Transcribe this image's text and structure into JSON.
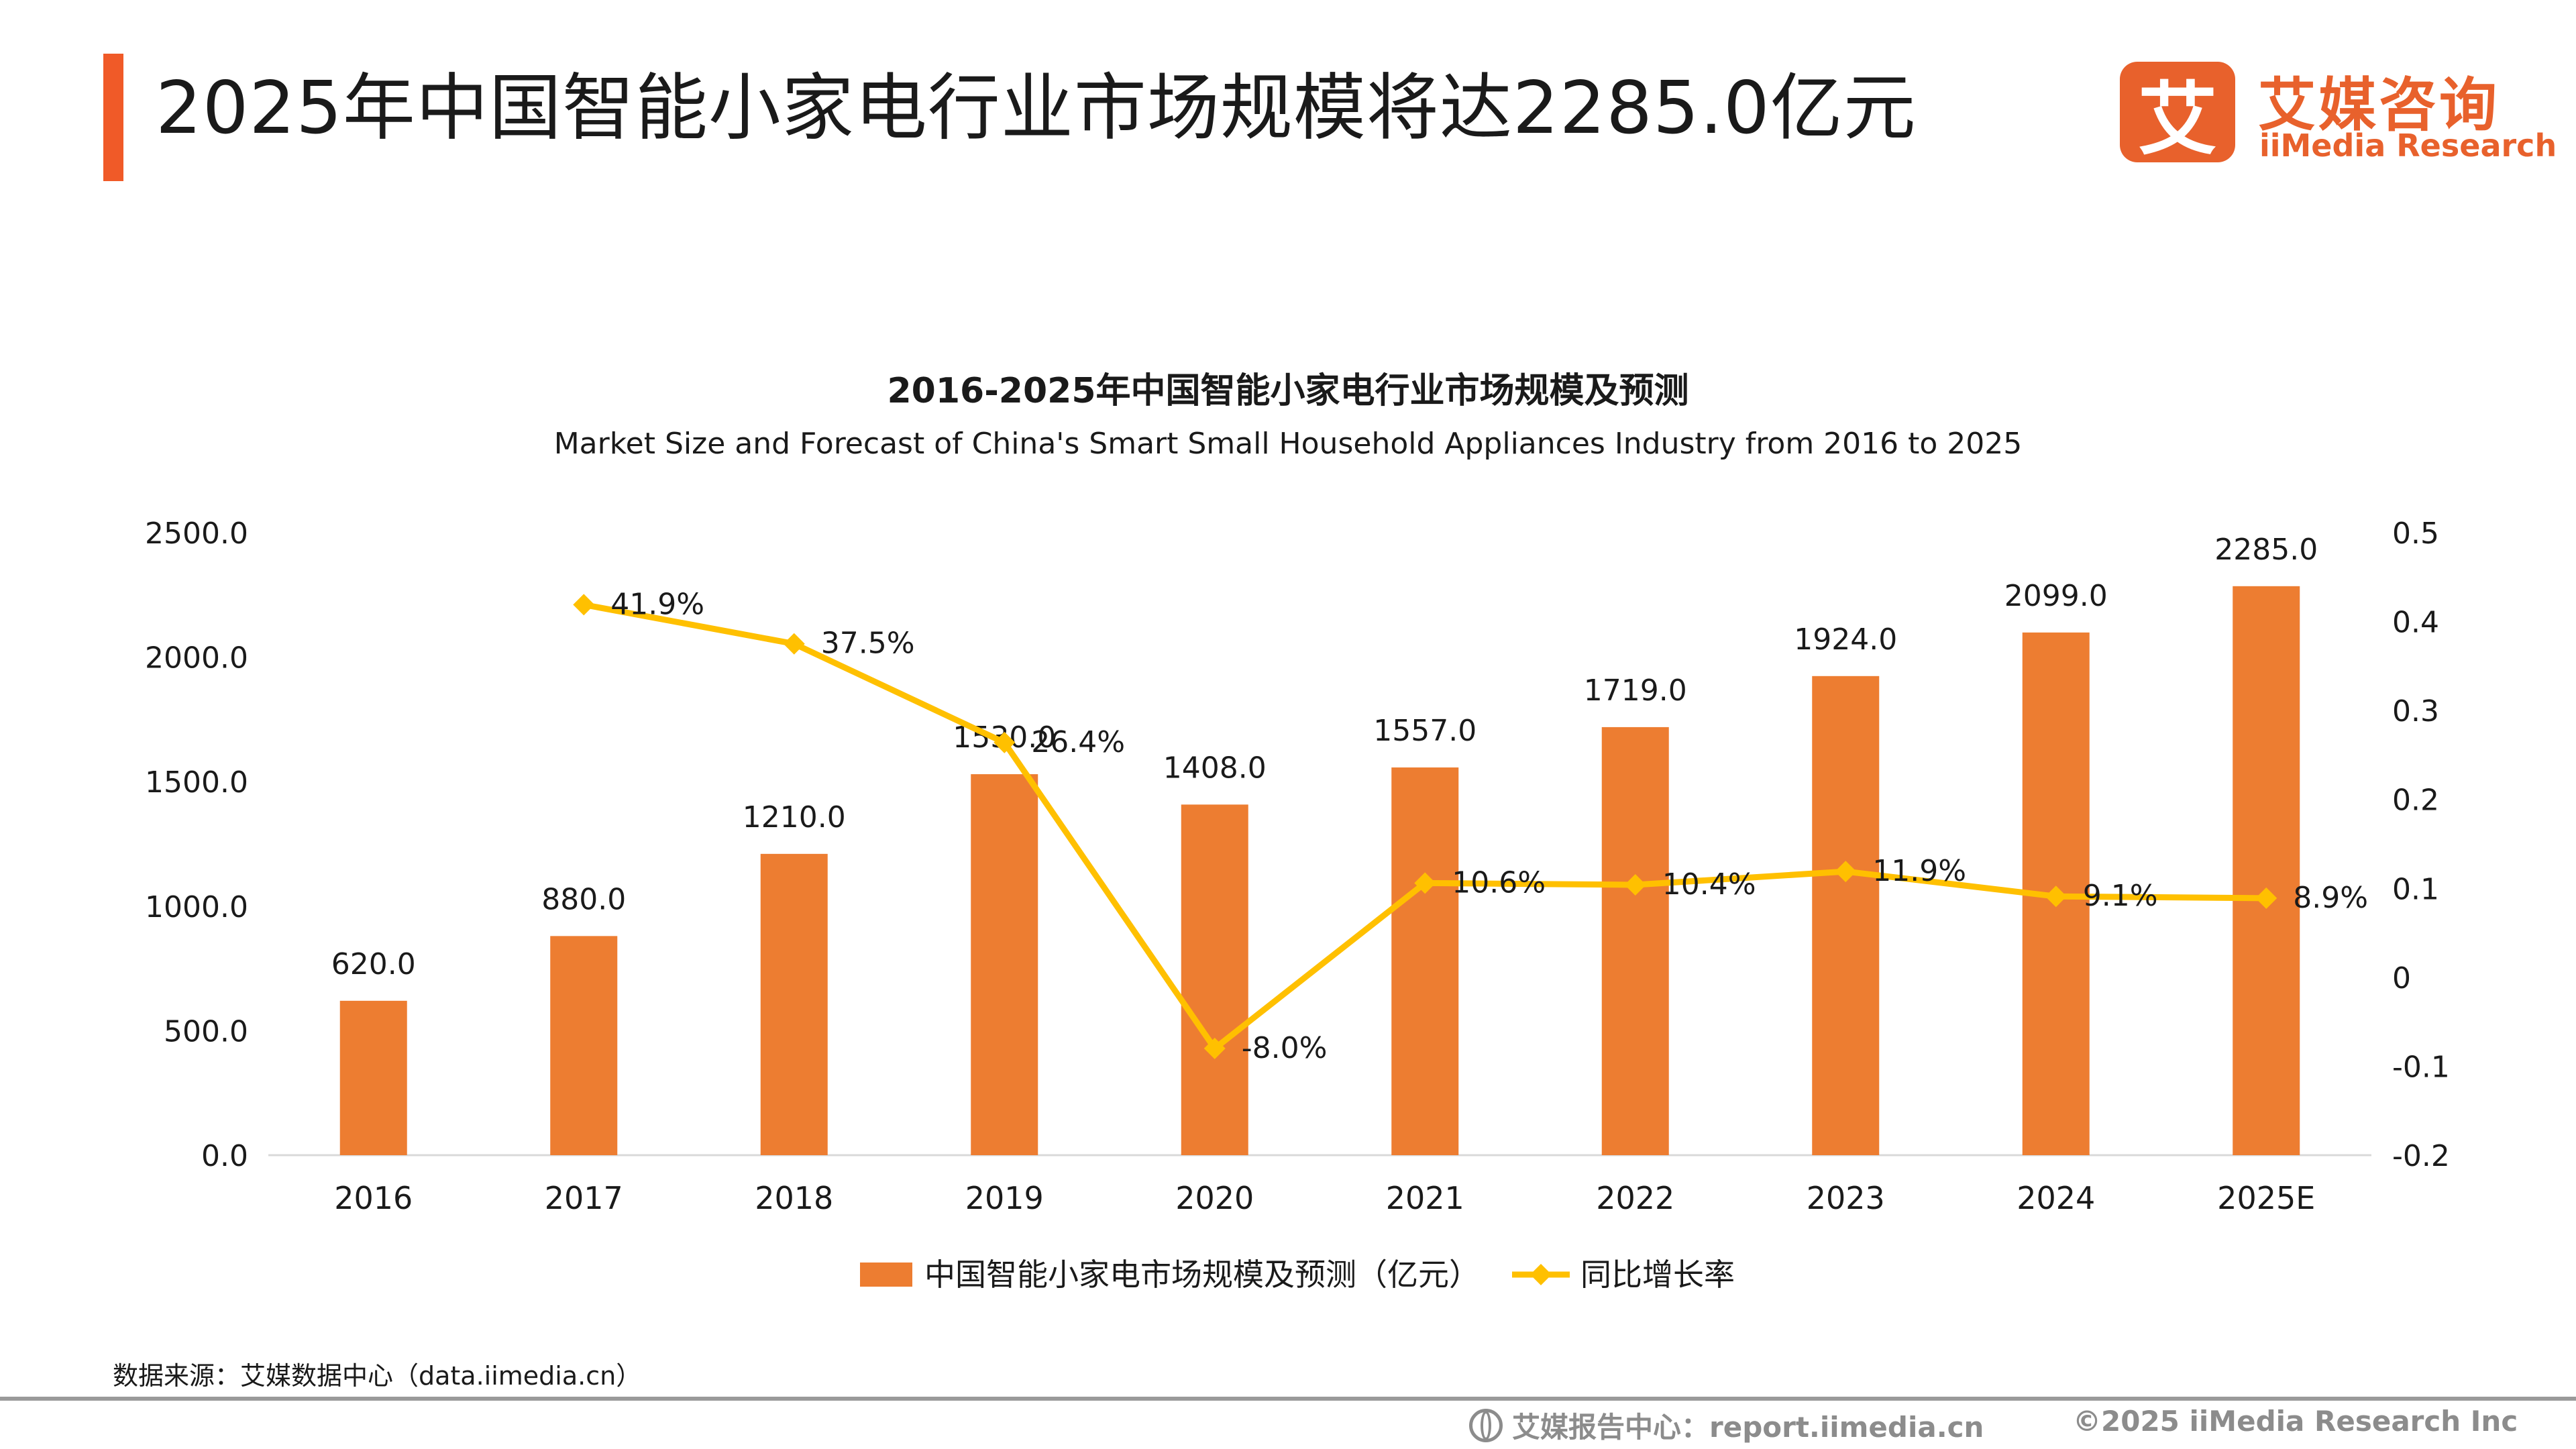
{
  "header": {
    "title": "2025年中国智能小家电行业市场规模将达2285.0亿元",
    "logo_mark": "艾",
    "logo_cn": "艾媒咨询",
    "logo_en": "iiMedia Research"
  },
  "footer": {
    "source": "数据来源：艾媒数据中心（data.iimedia.cn）",
    "report": "艾媒报告中心：report.iimedia.cn",
    "copyright": "©2025  iiMedia Research  Inc"
  },
  "colors": {
    "bar": "#ed7d31",
    "line": "#ffc000",
    "accent": "#f05a28"
  },
  "chart_data": {
    "type": "bar",
    "title": "2016-2025年中国智能小家电行业市场规模及预测",
    "subtitle": "Market Size and Forecast of China's Smart Small Household Appliances Industry from 2016 to 2025",
    "categories": [
      "2016",
      "2017",
      "2018",
      "2019",
      "2020",
      "2021",
      "2022",
      "2023",
      "2024",
      "2025E"
    ],
    "series": [
      {
        "name": "中国智能小家电市场规模及预测（亿元）",
        "type": "bar",
        "axis": "left",
        "values": [
          620.0,
          880.0,
          1210.0,
          1530.0,
          1408.0,
          1557.0,
          1719.0,
          1924.0,
          2099.0,
          2285.0
        ],
        "labels": [
          "620.0",
          "880.0",
          "1210.0",
          "1530.0",
          "1408.0",
          "1557.0",
          "1719.0",
          "1924.0",
          "2099.0",
          "2285.0"
        ]
      },
      {
        "name": "同比增长率",
        "type": "line",
        "axis": "right",
        "values": [
          null,
          0.419,
          0.375,
          0.264,
          -0.08,
          0.106,
          0.104,
          0.119,
          0.091,
          0.089
        ],
        "labels": [
          "",
          "41.9%",
          "37.5%",
          "26.4%",
          "-8.0%",
          "10.6%",
          "10.4%",
          "11.9%",
          "9.1%",
          "8.9%"
        ]
      }
    ],
    "y_left": {
      "min": 0,
      "max": 2500,
      "ticks": [
        "0.0",
        "500.0",
        "1000.0",
        "1500.0",
        "2000.0",
        "2500.0"
      ]
    },
    "y_right": {
      "min": -0.2,
      "max": 0.5,
      "ticks": [
        "-0.2",
        "-0.1",
        "0",
        "0.1",
        "0.2",
        "0.3",
        "0.4",
        "0.5"
      ]
    },
    "legend_position": "bottom",
    "grid": false
  }
}
